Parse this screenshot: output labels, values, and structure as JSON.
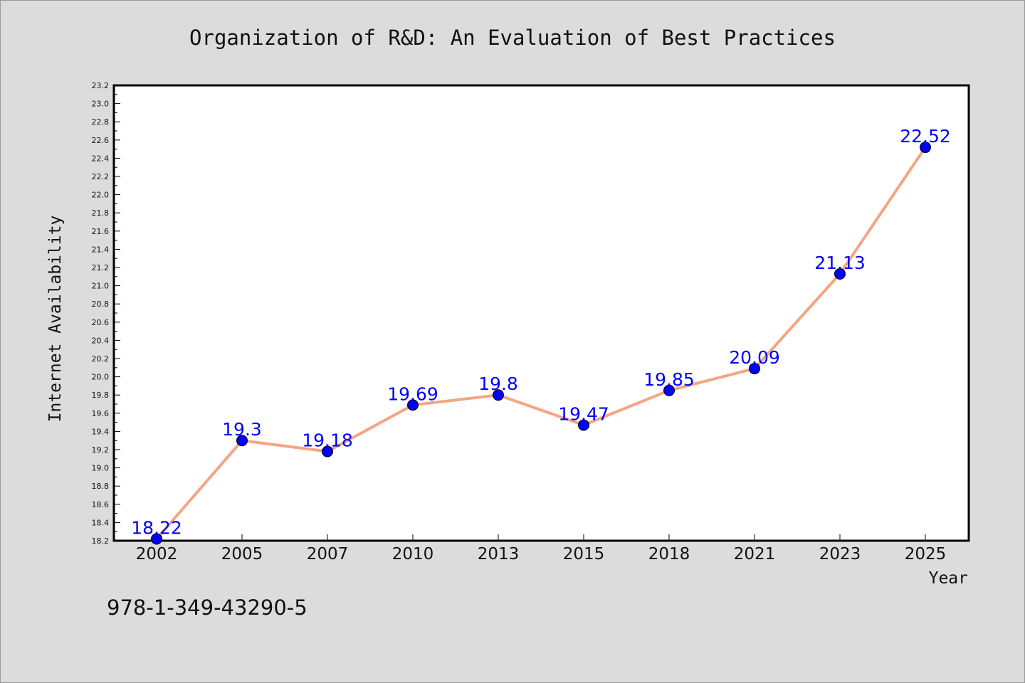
{
  "chart_data": {
    "type": "line",
    "title": "Organization of R&D: An Evaluation of Best Practices",
    "xlabel": "Year",
    "ylabel": "Internet Availability",
    "categories": [
      "2002",
      "2005",
      "2007",
      "2010",
      "2013",
      "2015",
      "2018",
      "2021",
      "2023",
      "2025"
    ],
    "series": [
      {
        "values": [
          18.22,
          19.3,
          19.18,
          19.69,
          19.8,
          19.47,
          19.85,
          20.09,
          21.13,
          22.52
        ],
        "labels": [
          "18.22",
          "19.3",
          "19.18",
          "19.69",
          "19.8",
          "19.47",
          "19.85",
          "20.09",
          "21.13",
          "22.52"
        ],
        "line_color": "#f4a582",
        "marker_color": "#0000ff"
      }
    ],
    "ylim": [
      18.2,
      23.2
    ],
    "yticks": [
      "18.2",
      "18.4",
      "18.6",
      "18.8",
      "19.0",
      "19.2",
      "19.4",
      "19.6",
      "19.8",
      "20.0",
      "20.2",
      "20.4",
      "20.6",
      "20.8",
      "21.0",
      "21.2",
      "21.4",
      "21.6",
      "21.8",
      "22.0",
      "22.2",
      "22.4",
      "22.6",
      "22.8",
      "23.0",
      "23.2"
    ],
    "grid": false,
    "legend": "none"
  },
  "footer_text": "978-1-349-43290-5",
  "colors": {
    "background": "#dcdcdc",
    "plot_background": "#ffffff",
    "label_color": "#0000ff"
  }
}
